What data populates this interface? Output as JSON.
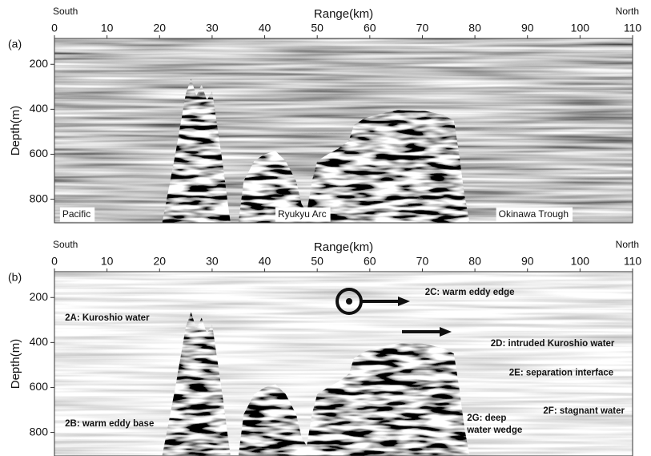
{
  "chart_data": [
    {
      "type": "seismic",
      "panel_label": "(a)",
      "xlabel": "Range(km)",
      "ylabel": "Depth(m)",
      "left_label": "South",
      "right_label": "North",
      "xlim": [
        0,
        110
      ],
      "xticks": [
        0,
        10,
        20,
        30,
        40,
        50,
        60,
        70,
        80,
        90,
        100,
        110
      ],
      "ylim": [
        85,
        905
      ],
      "yticks": [
        200,
        400,
        600,
        800
      ],
      "annotations": [
        "Pacific",
        "Ryukyu Arc",
        "Okinawa Trough"
      ]
    },
    {
      "type": "seismic",
      "panel_label": "(b)",
      "xlabel": "Range(km)",
      "ylabel": "Depth(m)",
      "left_label": "South",
      "right_label": "North",
      "xlim": [
        0,
        110
      ],
      "xticks": [
        0,
        10,
        20,
        30,
        40,
        50,
        60,
        70,
        80,
        90,
        100,
        110
      ],
      "ylim": [
        85,
        905
      ],
      "yticks": [
        200,
        400,
        600,
        800
      ],
      "annotations": [
        "2A: Kuroshio water",
        "2B: warm eddy base",
        "2C: warm eddy edge",
        "2D: intruded Kuroshio water",
        "2E: separation interface",
        "2F: stagnant water",
        "2G: deep",
        "water wedge"
      ]
    }
  ]
}
